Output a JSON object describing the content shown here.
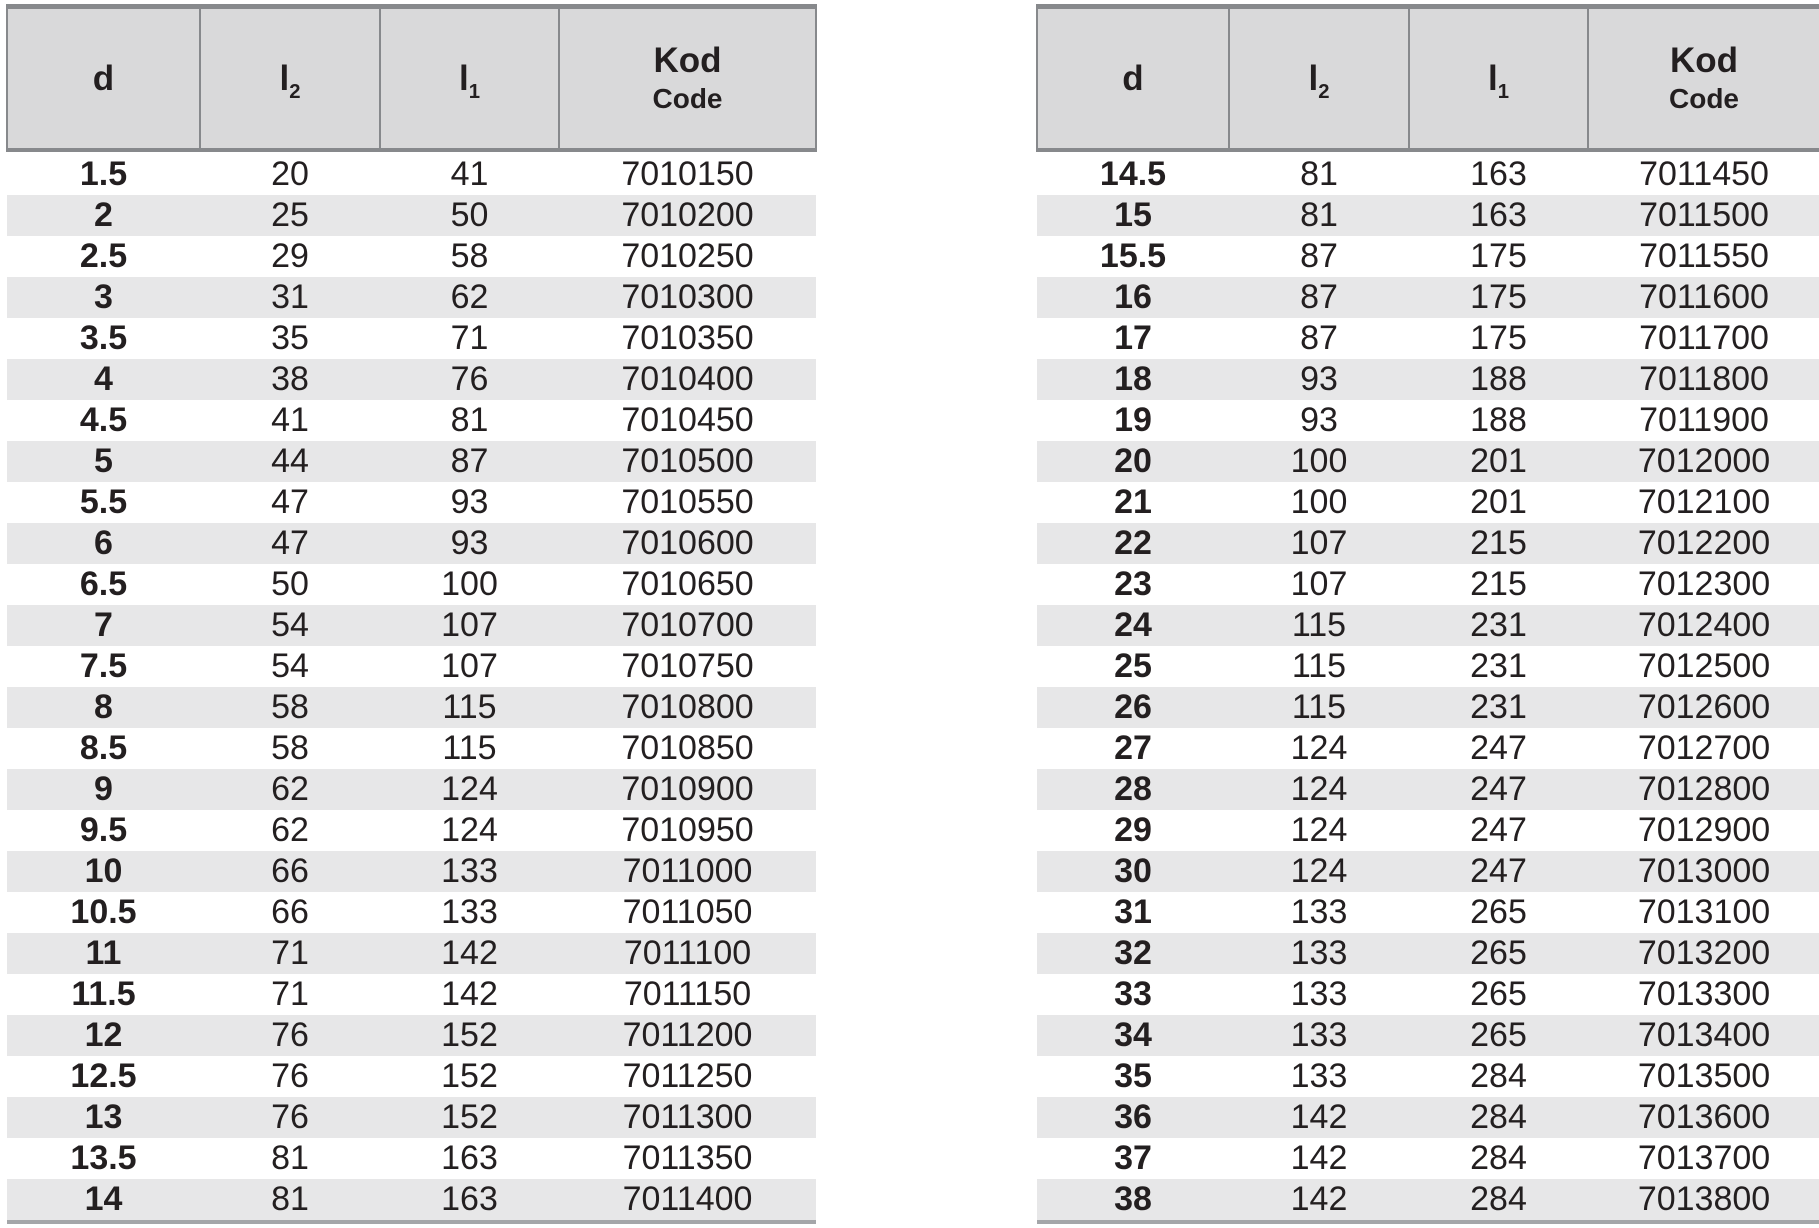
{
  "colors": {
    "page_background": "#ffffff",
    "header_background": "#d9d9da",
    "stripe_background": "#e7e7e8",
    "header_border": "#87898c",
    "table_bottom_border": "#a4a6a9",
    "text": "#231f20"
  },
  "header": {
    "d": "d",
    "l2": {
      "main": "l",
      "sub": "2"
    },
    "l1": {
      "main": "l",
      "sub": "1"
    },
    "kod": {
      "line1": "Kod",
      "line2": "Code"
    }
  },
  "left_table": {
    "rows": [
      [
        "1.5",
        "20",
        "41",
        "7010150"
      ],
      [
        "2",
        "25",
        "50",
        "7010200"
      ],
      [
        "2.5",
        "29",
        "58",
        "7010250"
      ],
      [
        "3",
        "31",
        "62",
        "7010300"
      ],
      [
        "3.5",
        "35",
        "71",
        "7010350"
      ],
      [
        "4",
        "38",
        "76",
        "7010400"
      ],
      [
        "4.5",
        "41",
        "81",
        "7010450"
      ],
      [
        "5",
        "44",
        "87",
        "7010500"
      ],
      [
        "5.5",
        "47",
        "93",
        "7010550"
      ],
      [
        "6",
        "47",
        "93",
        "7010600"
      ],
      [
        "6.5",
        "50",
        "100",
        "7010650"
      ],
      [
        "7",
        "54",
        "107",
        "7010700"
      ],
      [
        "7.5",
        "54",
        "107",
        "7010750"
      ],
      [
        "8",
        "58",
        "115",
        "7010800"
      ],
      [
        "8.5",
        "58",
        "115",
        "7010850"
      ],
      [
        "9",
        "62",
        "124",
        "7010900"
      ],
      [
        "9.5",
        "62",
        "124",
        "7010950"
      ],
      [
        "10",
        "66",
        "133",
        "7011000"
      ],
      [
        "10.5",
        "66",
        "133",
        "7011050"
      ],
      [
        "11",
        "71",
        "142",
        "7011100"
      ],
      [
        "11.5",
        "71",
        "142",
        "7011150"
      ],
      [
        "12",
        "76",
        "152",
        "7011200"
      ],
      [
        "12.5",
        "76",
        "152",
        "7011250"
      ],
      [
        "13",
        "76",
        "152",
        "7011300"
      ],
      [
        "13.5",
        "81",
        "163",
        "7011350"
      ],
      [
        "14",
        "81",
        "163",
        "7011400"
      ]
    ]
  },
  "right_table": {
    "rows": [
      [
        "14.5",
        "81",
        "163",
        "7011450"
      ],
      [
        "15",
        "81",
        "163",
        "7011500"
      ],
      [
        "15.5",
        "87",
        "175",
        "7011550"
      ],
      [
        "16",
        "87",
        "175",
        "7011600"
      ],
      [
        "17",
        "87",
        "175",
        "7011700"
      ],
      [
        "18",
        "93",
        "188",
        "7011800"
      ],
      [
        "19",
        "93",
        "188",
        "7011900"
      ],
      [
        "20",
        "100",
        "201",
        "7012000"
      ],
      [
        "21",
        "100",
        "201",
        "7012100"
      ],
      [
        "22",
        "107",
        "215",
        "7012200"
      ],
      [
        "23",
        "107",
        "215",
        "7012300"
      ],
      [
        "24",
        "115",
        "231",
        "7012400"
      ],
      [
        "25",
        "115",
        "231",
        "7012500"
      ],
      [
        "26",
        "115",
        "231",
        "7012600"
      ],
      [
        "27",
        "124",
        "247",
        "7012700"
      ],
      [
        "28",
        "124",
        "247",
        "7012800"
      ],
      [
        "29",
        "124",
        "247",
        "7012900"
      ],
      [
        "30",
        "124",
        "247",
        "7013000"
      ],
      [
        "31",
        "133",
        "265",
        "7013100"
      ],
      [
        "32",
        "133",
        "265",
        "7013200"
      ],
      [
        "33",
        "133",
        "265",
        "7013300"
      ],
      [
        "34",
        "133",
        "265",
        "7013400"
      ],
      [
        "35",
        "133",
        "284",
        "7013500"
      ],
      [
        "36",
        "142",
        "284",
        "7013600"
      ],
      [
        "37",
        "142",
        "284",
        "7013700"
      ],
      [
        "38",
        "142",
        "284",
        "7013800"
      ]
    ]
  }
}
